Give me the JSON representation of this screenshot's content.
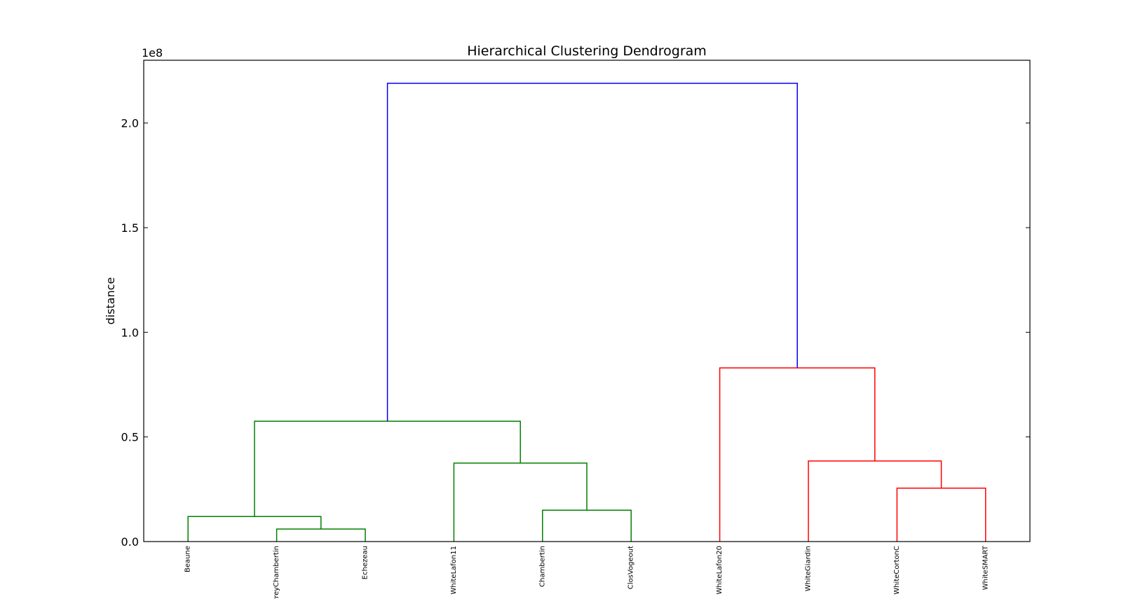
{
  "chart_data": {
    "type": "dendrogram",
    "title": "Hierarchical Clustering Dendrogram",
    "xlabel": "",
    "ylabel": "distance",
    "y_offset_text": "1e8",
    "y_scale": 100000000,
    "ylim": [
      0,
      2.3
    ],
    "yticks": [
      0.0,
      0.5,
      1.0,
      1.5,
      2.0
    ],
    "ytick_labels": [
      "0.0",
      "0.5",
      "1.0",
      "1.5",
      "2.0"
    ],
    "leaves": [
      "Beaune",
      "GevreyChambertin",
      "Echezeau",
      "WhiteLafon11",
      "Chambertin",
      "ClosVogeout",
      "WhiteLafon20",
      "WhiteGiardin",
      "WhiteCortonC",
      "WhiteSMART"
    ],
    "colors": {
      "cluster_1": "#008000",
      "cluster_2": "#ff0000",
      "root": "#0000ff"
    },
    "merges": [
      {
        "id": "m1",
        "left": "GevreyChambertin",
        "right": "Echezeau",
        "height": 0.06,
        "color": "cluster_1"
      },
      {
        "id": "m2",
        "left": "Beaune",
        "right": "m1",
        "height": 0.12,
        "color": "cluster_1"
      },
      {
        "id": "m3",
        "left": "Chambertin",
        "right": "ClosVogeout",
        "height": 0.15,
        "color": "cluster_1"
      },
      {
        "id": "m4",
        "left": "WhiteLafon11",
        "right": "m3",
        "height": 0.375,
        "color": "cluster_1"
      },
      {
        "id": "m5",
        "left": "m2",
        "right": "m4",
        "height": 0.575,
        "color": "cluster_1"
      },
      {
        "id": "m6",
        "left": "WhiteCortonC",
        "right": "WhiteSMART",
        "height": 0.255,
        "color": "cluster_2"
      },
      {
        "id": "m7",
        "left": "WhiteGiardin",
        "right": "m6",
        "height": 0.385,
        "color": "cluster_2"
      },
      {
        "id": "m8",
        "left": "WhiteLafon20",
        "right": "m7",
        "height": 0.83,
        "color": "cluster_2"
      },
      {
        "id": "m9",
        "left": "m5",
        "right": "m8",
        "height": 2.19,
        "color": "root"
      }
    ],
    "grid": false,
    "legend": "none"
  }
}
